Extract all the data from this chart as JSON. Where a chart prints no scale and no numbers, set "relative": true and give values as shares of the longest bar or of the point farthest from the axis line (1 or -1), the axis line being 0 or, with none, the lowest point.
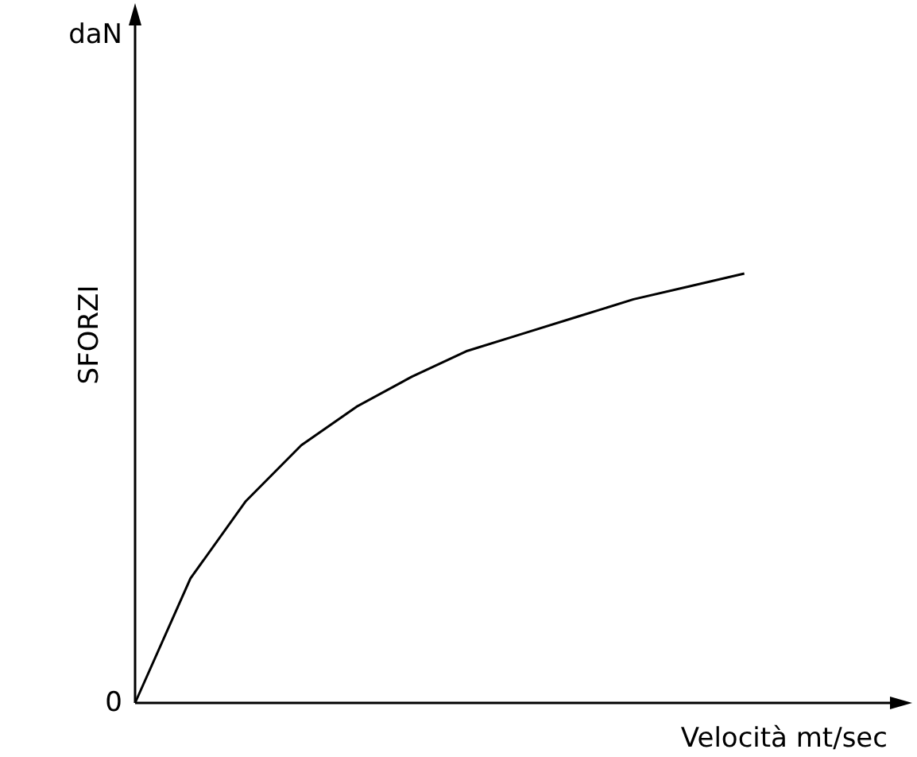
{
  "chart_data": {
    "type": "line",
    "relative": true,
    "xlabel": "Velocità   mt/sec",
    "ylabel": "SFORZI",
    "annotations": [
      "daN",
      "0"
    ],
    "categories": [
      null,
      null,
      null,
      null,
      null,
      null,
      null,
      null,
      null,
      null,
      null,
      null
    ],
    "values": [
      0,
      0.29,
      0.47,
      0.6,
      0.69,
      0.76,
      0.82,
      0.86,
      0.9,
      0.94,
      0.97,
      1
    ],
    "color": "#000000",
    "grid": false,
    "marker": "none",
    "line_style": "solid"
  }
}
